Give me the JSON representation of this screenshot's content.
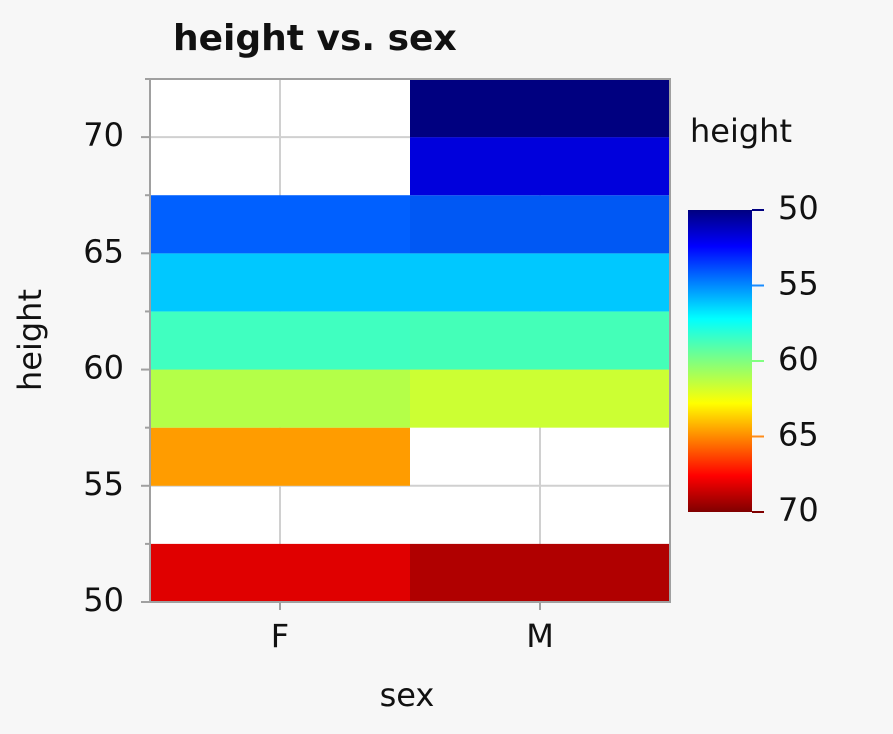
{
  "chart_data": {
    "type": "heatmap",
    "title": "height vs. sex",
    "x_label": "sex",
    "y_label": "height",
    "categories": [
      "F",
      "M"
    ],
    "y_bins": [
      50,
      52.5,
      55,
      57.5,
      60,
      62.5,
      65,
      67.5,
      70,
      72.5
    ],
    "values": [
      [
        68,
        69.5
      ],
      [
        null,
        null
      ],
      [
        64.5,
        null
      ],
      [
        61.5,
        62
      ],
      [
        59,
        59
      ],
      [
        56.5,
        56.5
      ],
      [
        54,
        53.8
      ],
      [
        null,
        51.5
      ],
      [
        null,
        50
      ]
    ],
    "colors": [
      [
        "#e00000",
        "#b00000"
      ],
      [
        null,
        null
      ],
      [
        "#ff9c00",
        null
      ],
      [
        "#b4ff48",
        "#ccff33"
      ],
      [
        "#40ffc0",
        "#44ffb8"
      ],
      [
        "#00c8ff",
        "#00c8ff"
      ],
      [
        "#0060ff",
        "#0058f4"
      ],
      [
        null,
        "#0000dc"
      ],
      [
        null,
        "#000080"
      ]
    ],
    "ylim": [
      50,
      72.5
    ],
    "yticks": [
      50,
      55,
      60,
      65,
      70
    ],
    "yticks_minor": [
      52.5,
      57.5,
      62.5,
      67.5,
      72.5
    ],
    "grid": true,
    "color_scale": {
      "title": "height",
      "lim": [
        50,
        70
      ],
      "ticks": [
        50,
        55,
        60,
        65,
        70
      ],
      "tick_colors": [
        "#000080",
        "#1a8cff",
        "#80ff80",
        "#ff8c1a",
        "#800000"
      ]
    }
  }
}
